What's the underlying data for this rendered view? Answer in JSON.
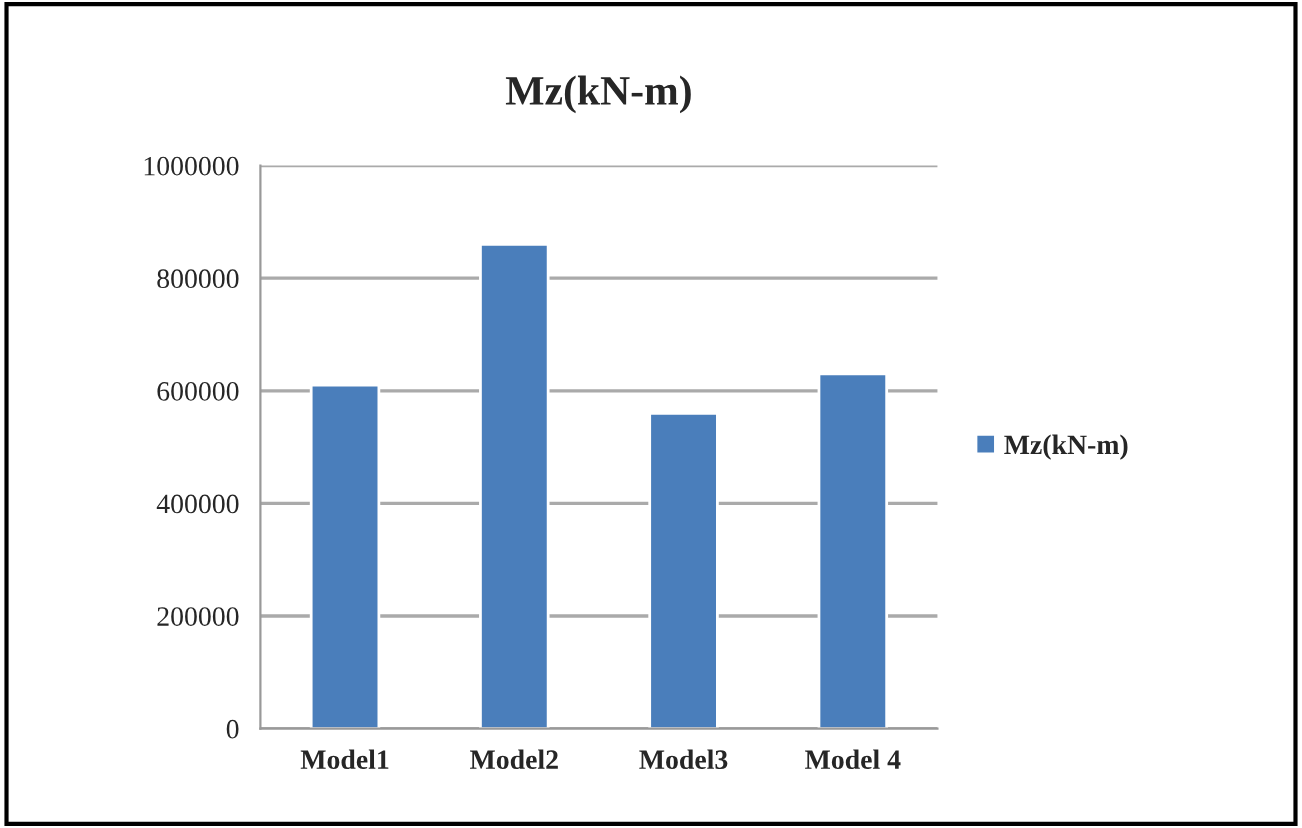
{
  "chart_data": {
    "type": "bar",
    "title": "Mz(kN-m)",
    "categories": [
      "Model1",
      "Model2",
      "Model3",
      "Model 4"
    ],
    "series": [
      {
        "name": "Mz(kN-m)",
        "color": "#4a7ebb",
        "values": [
          610000,
          860000,
          560000,
          630000
        ]
      }
    ],
    "ylim": [
      0,
      1000000
    ],
    "yticks": [
      0,
      200000,
      400000,
      600000,
      800000,
      1000000
    ],
    "grid": "y",
    "legend": "right"
  }
}
